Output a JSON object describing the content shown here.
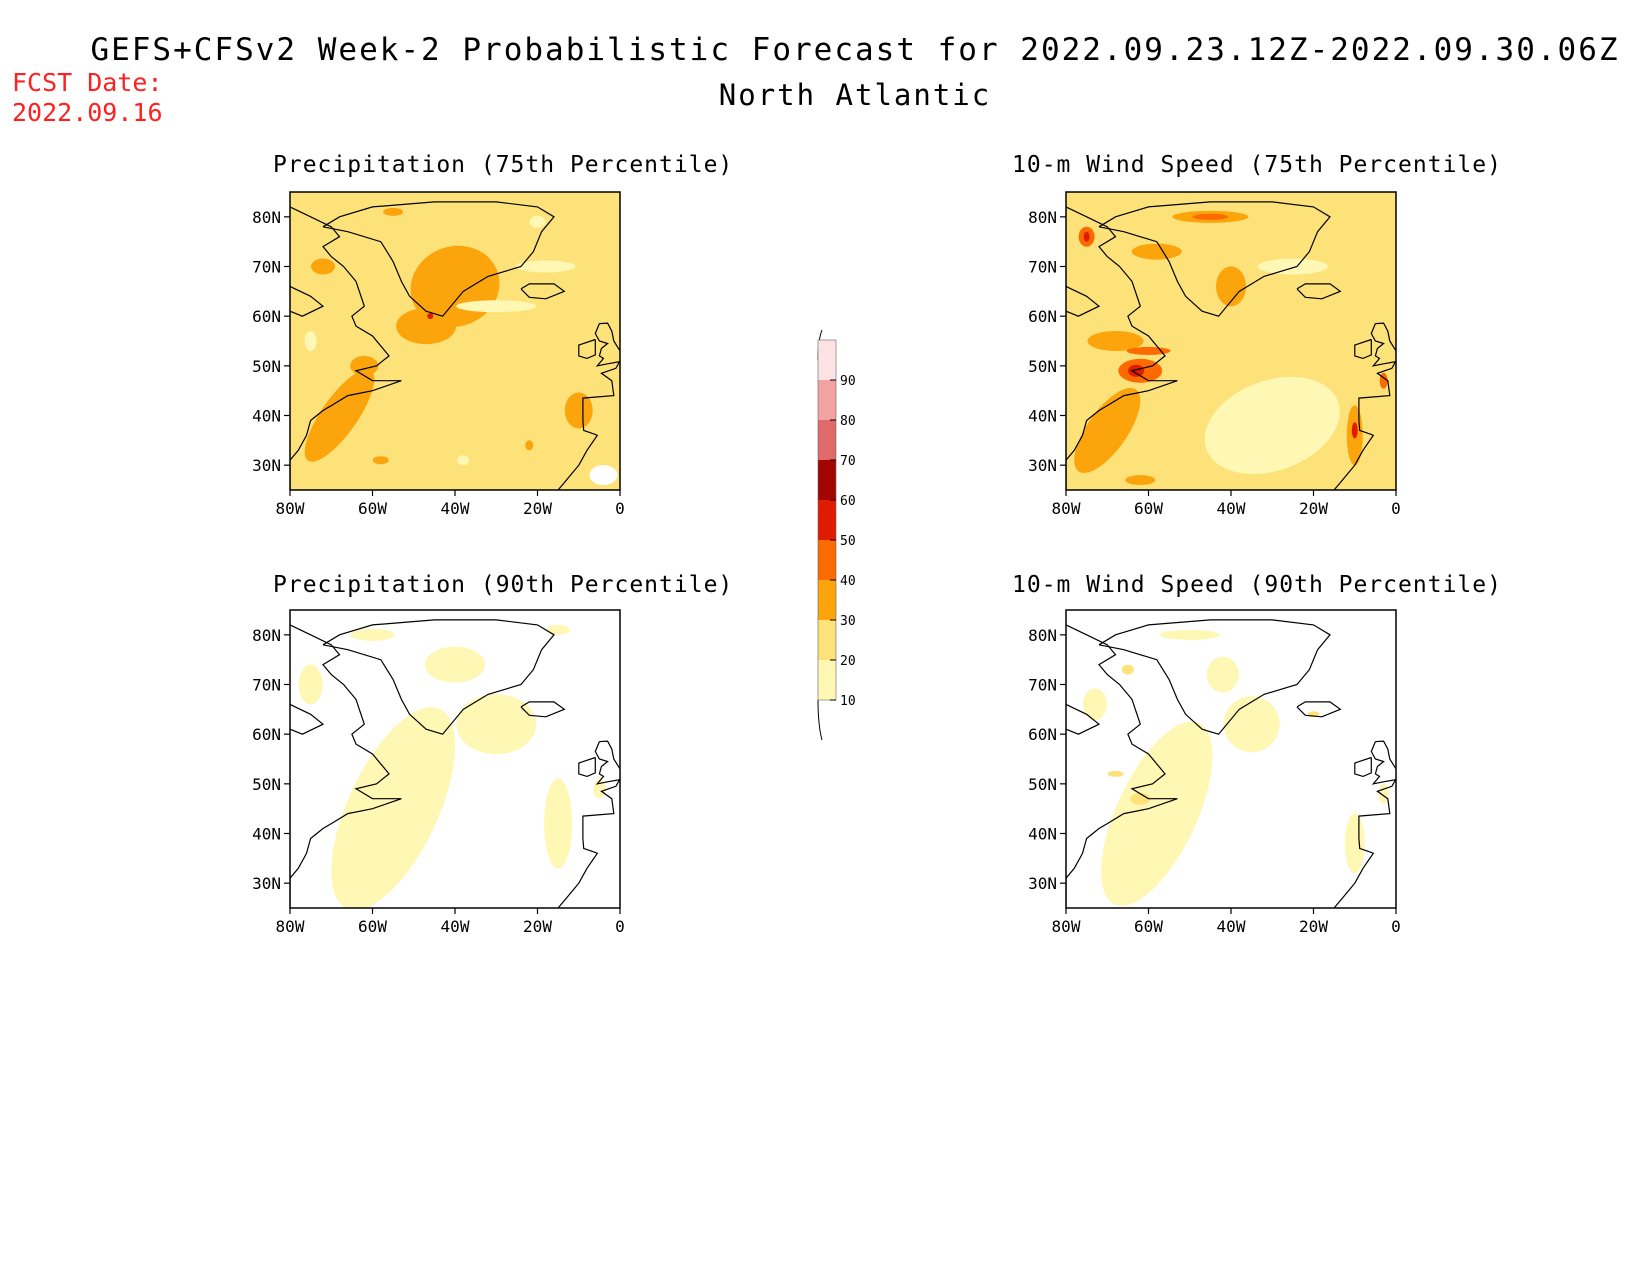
{
  "header": {
    "title": "GEFS+CFSv2 Week-2 Probabilistic Forecast for 2022.09.23.12Z-2022.09.30.06Z",
    "region": "North Atlantic",
    "fcst_label": "FCST Date:",
    "fcst_value": "2022.09.16"
  },
  "colors": {
    "level_10": "#fff7b4",
    "level_20": "#fde27a",
    "level_30": "#fca40c",
    "level_40": "#fc6a00",
    "level_50": "#e01c00",
    "level_60": "#a30600",
    "level_70": "#e06a6a",
    "level_80": "#f4a3a3",
    "level_90": "#fde3e3"
  },
  "colorbar": {
    "levels": [
      "10",
      "20",
      "30",
      "40",
      "50",
      "60",
      "70",
      "80",
      "90"
    ]
  },
  "panels": [
    {
      "title": "Precipitation (75th Percentile)",
      "x_ticks": [
        "80W",
        "60W",
        "40W",
        "20W",
        "0"
      ],
      "y_ticks": [
        "30N",
        "40N",
        "50N",
        "60N",
        "70N",
        "80N"
      ],
      "dominant_level": "20-30"
    },
    {
      "title": "10-m Wind Speed (75th Percentile)",
      "x_ticks": [
        "80W",
        "60W",
        "40W",
        "20W",
        "0"
      ],
      "y_ticks": [
        "30N",
        "40N",
        "50N",
        "60N",
        "70N",
        "80N"
      ],
      "dominant_level": "20-30"
    },
    {
      "title": "Precipitation (90th Percentile)",
      "x_ticks": [
        "80W",
        "60W",
        "40W",
        "20W",
        "0"
      ],
      "y_ticks": [
        "30N",
        "40N",
        "50N",
        "60N",
        "70N",
        "80N"
      ],
      "dominant_level": "0-20"
    },
    {
      "title": "10-m Wind Speed (90th Percentile)",
      "x_ticks": [
        "80W",
        "60W",
        "40W",
        "20W",
        "0"
      ],
      "y_ticks": [
        "30N",
        "40N",
        "50N",
        "60N",
        "70N",
        "80N"
      ],
      "dominant_level": "0-20"
    }
  ]
}
